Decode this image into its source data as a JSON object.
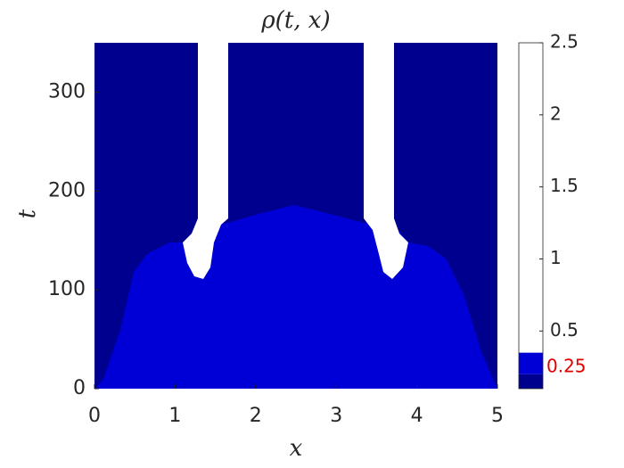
{
  "chart_data": {
    "type": "heatmap",
    "title": "ρ(t, x)",
    "xlabel": "x",
    "ylabel": "t",
    "xlim": [
      0,
      5
    ],
    "xticks": [
      0,
      1,
      2,
      3,
      4,
      5
    ],
    "ylim": [
      0,
      350
    ],
    "yticks": [
      0,
      100,
      200,
      300
    ],
    "colorbar": {
      "clim": [
        0.1,
        2.5
      ],
      "ticks": [
        0.5,
        1,
        1.5,
        2,
        2.5
      ],
      "breaks": [
        0.1,
        0.2,
        0.35,
        2.5
      ],
      "colors": [
        "#00008f",
        "#0000d6",
        "#ffffff"
      ],
      "annotations": [
        {
          "value": 0.25,
          "label": "0.25",
          "color": "#e00000"
        }
      ]
    }
  }
}
